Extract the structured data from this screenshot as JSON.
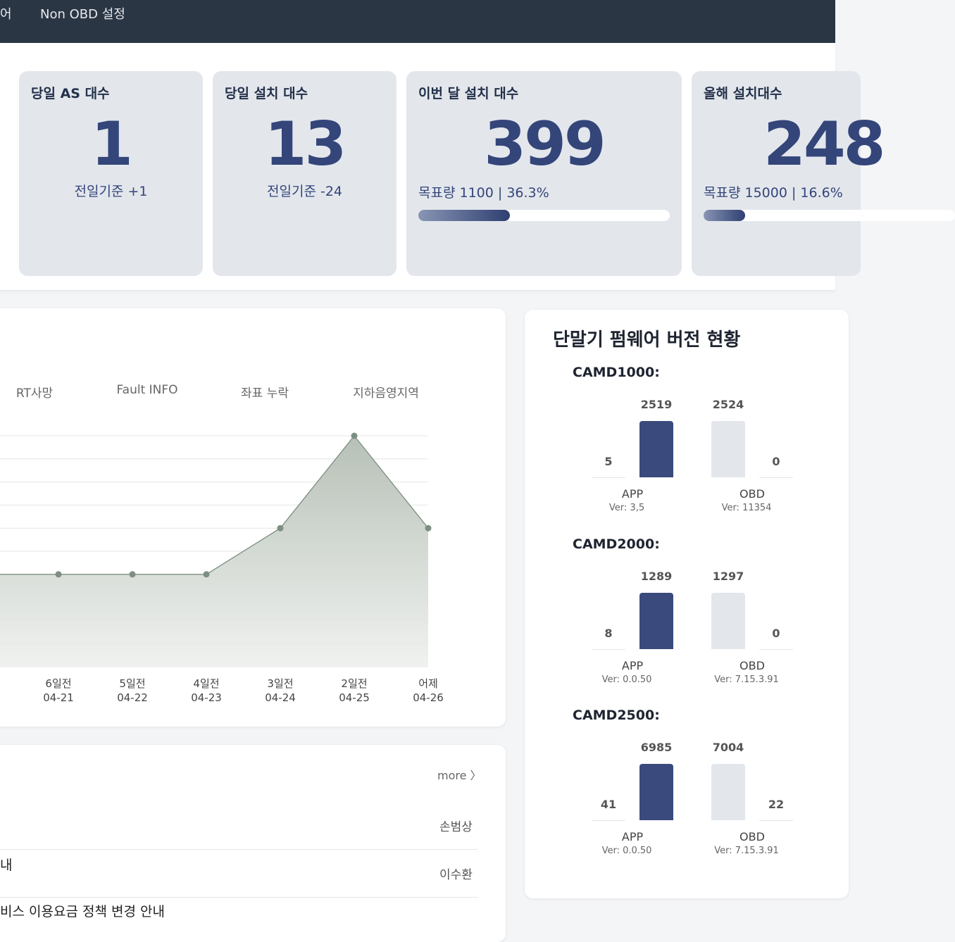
{
  "nav": {
    "items": [
      {
        "label": "어"
      },
      {
        "label": "Non OBD 설정"
      }
    ]
  },
  "stats": {
    "today_as": {
      "title": "당일 AS 대수",
      "value": "1",
      "sub": "전일기준 +1"
    },
    "today_install": {
      "title": "당일 설치 대수",
      "value": "13",
      "sub": "전일기준 -24"
    },
    "month_install": {
      "title": "이번 달 설치 대수",
      "value": "399",
      "sub": "목표량 1100 | 36.3%",
      "progress": 0.363
    },
    "year_install": {
      "title": "올해 설치대수",
      "value": "248",
      "sub": "목표량 15000 | 16.6%",
      "progress": 0.166
    }
  },
  "chart": {
    "tabs": [
      "RT사망",
      "Fault INFO",
      "좌표 누락",
      "지하음영지역"
    ]
  },
  "chart_data": {
    "type": "area",
    "categories": [
      {
        "day": "6일전",
        "date": "04-21"
      },
      {
        "day": "5일전",
        "date": "04-22"
      },
      {
        "day": "4일전",
        "date": "04-23"
      },
      {
        "day": "3일전",
        "date": "04-24"
      },
      {
        "day": "2일전",
        "date": "04-25"
      },
      {
        "day": "어제",
        "date": "04-26"
      }
    ],
    "values": [
      4,
      4,
      4,
      6,
      10,
      6
    ],
    "ylim": [
      0,
      10
    ],
    "grid": true,
    "color": "#7d8f82"
  },
  "notices": {
    "more_label": "more 〉",
    "items": [
      {
        "title": "",
        "author": "손범상"
      },
      {
        "title": "내",
        "author": "이수환"
      },
      {
        "title": "비스 이용요금 정책 변경 안내",
        "author": ""
      }
    ]
  },
  "firmware": {
    "title": "단말기 펌웨어 버전 현황",
    "models": [
      {
        "name": "CAMD1000:",
        "groups": [
          {
            "label": "APP",
            "ver": "Ver: 3,5",
            "left_value": "5",
            "right_value": "2519"
          },
          {
            "label": "OBD",
            "ver": "Ver: 11354",
            "left_value": "2524",
            "right_value": "0"
          }
        ]
      },
      {
        "name": "CAMD2000:",
        "groups": [
          {
            "label": "APP",
            "ver": "Ver: 0.0.50",
            "left_value": "8",
            "right_value": "1289"
          },
          {
            "label": "OBD",
            "ver": "Ver: 7.15.3.91",
            "left_value": "1297",
            "right_value": "0"
          }
        ]
      },
      {
        "name": "CAMD2500:",
        "groups": [
          {
            "label": "APP",
            "ver": "Ver: 0.0.50",
            "left_value": "41",
            "right_value": "6985"
          },
          {
            "label": "OBD",
            "ver": "Ver: 7.15.3.91",
            "left_value": "7004",
            "right_value": "22"
          }
        ]
      }
    ]
  }
}
